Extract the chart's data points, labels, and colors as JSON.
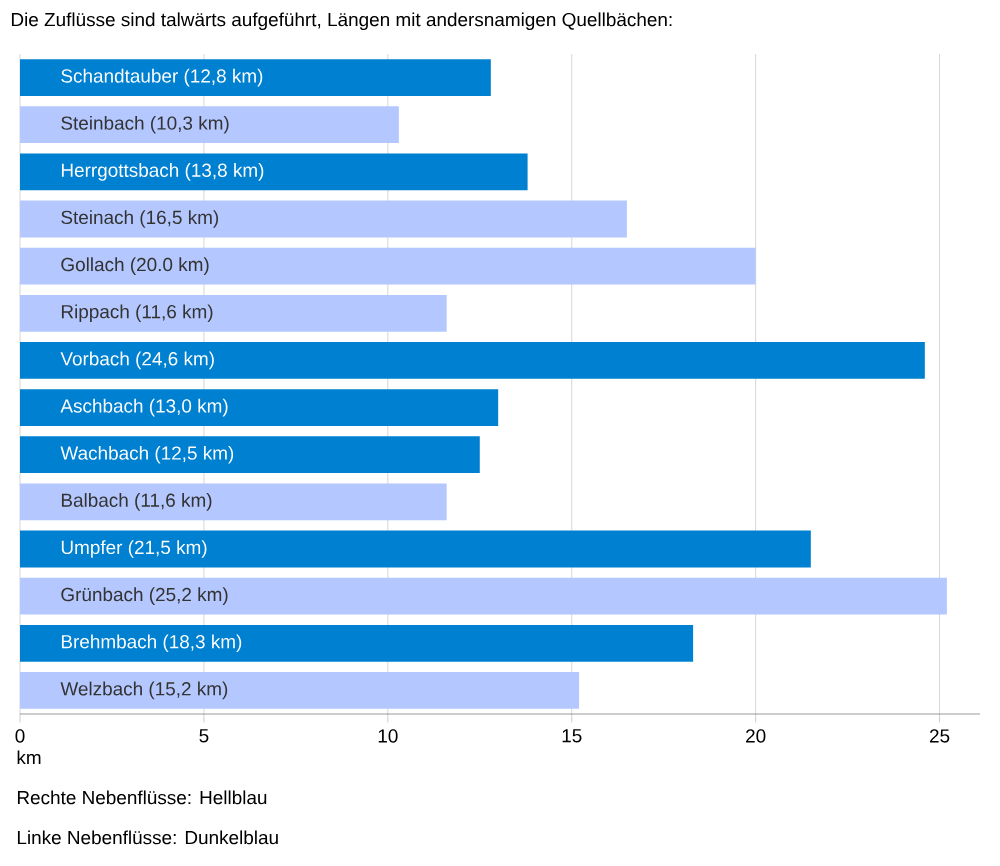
{
  "chart_data": {
    "type": "bar",
    "orientation": "horizontal",
    "title": "Die Zuflüsse sind talwärts aufgeführt, Längen mit andersnamigen Quellbächen:",
    "categories": [
      "Schandtauber (12,8 km)",
      "Steinbach (10,3 km)",
      "Herrgottsbach (13,8 km)",
      "Steinach (16,5 km)",
      "Gollach (20.0 km)",
      "Rippach (11,6 km)",
      "Vorbach (24,6 km)",
      "Aschbach (13,0 km)",
      "Wachbach (12,5 km)",
      "Balbach (11,6 km)",
      "Umpfer (21,5 km)",
      "Grünbach (25,2 km)",
      "Brehmbach (18,3 km)",
      "Welzbach (15,2 km)"
    ],
    "values": [
      12.8,
      10.3,
      13.8,
      16.5,
      20.0,
      11.6,
      24.6,
      13.0,
      12.5,
      11.6,
      21.5,
      25.2,
      18.3,
      15.2
    ],
    "colors": [
      "#0080d0",
      "#b4c8ff",
      "#0080d0",
      "#b4c8ff",
      "#b4c8ff",
      "#b4c8ff",
      "#0080d0",
      "#0080d0",
      "#0080d0",
      "#b4c8ff",
      "#0080d0",
      "#b4c8ff",
      "#0080d0",
      "#b4c8ff"
    ],
    "xlabel": "km",
    "xlim": [
      0,
      26.1
    ],
    "xticks": [
      0,
      5,
      10,
      15,
      20,
      25
    ],
    "grid": "x",
    "annotations": [
      "Rechte Nebenflüsse: Hellblau",
      "Linke Nebenflüsse: Dunkelblau"
    ]
  }
}
